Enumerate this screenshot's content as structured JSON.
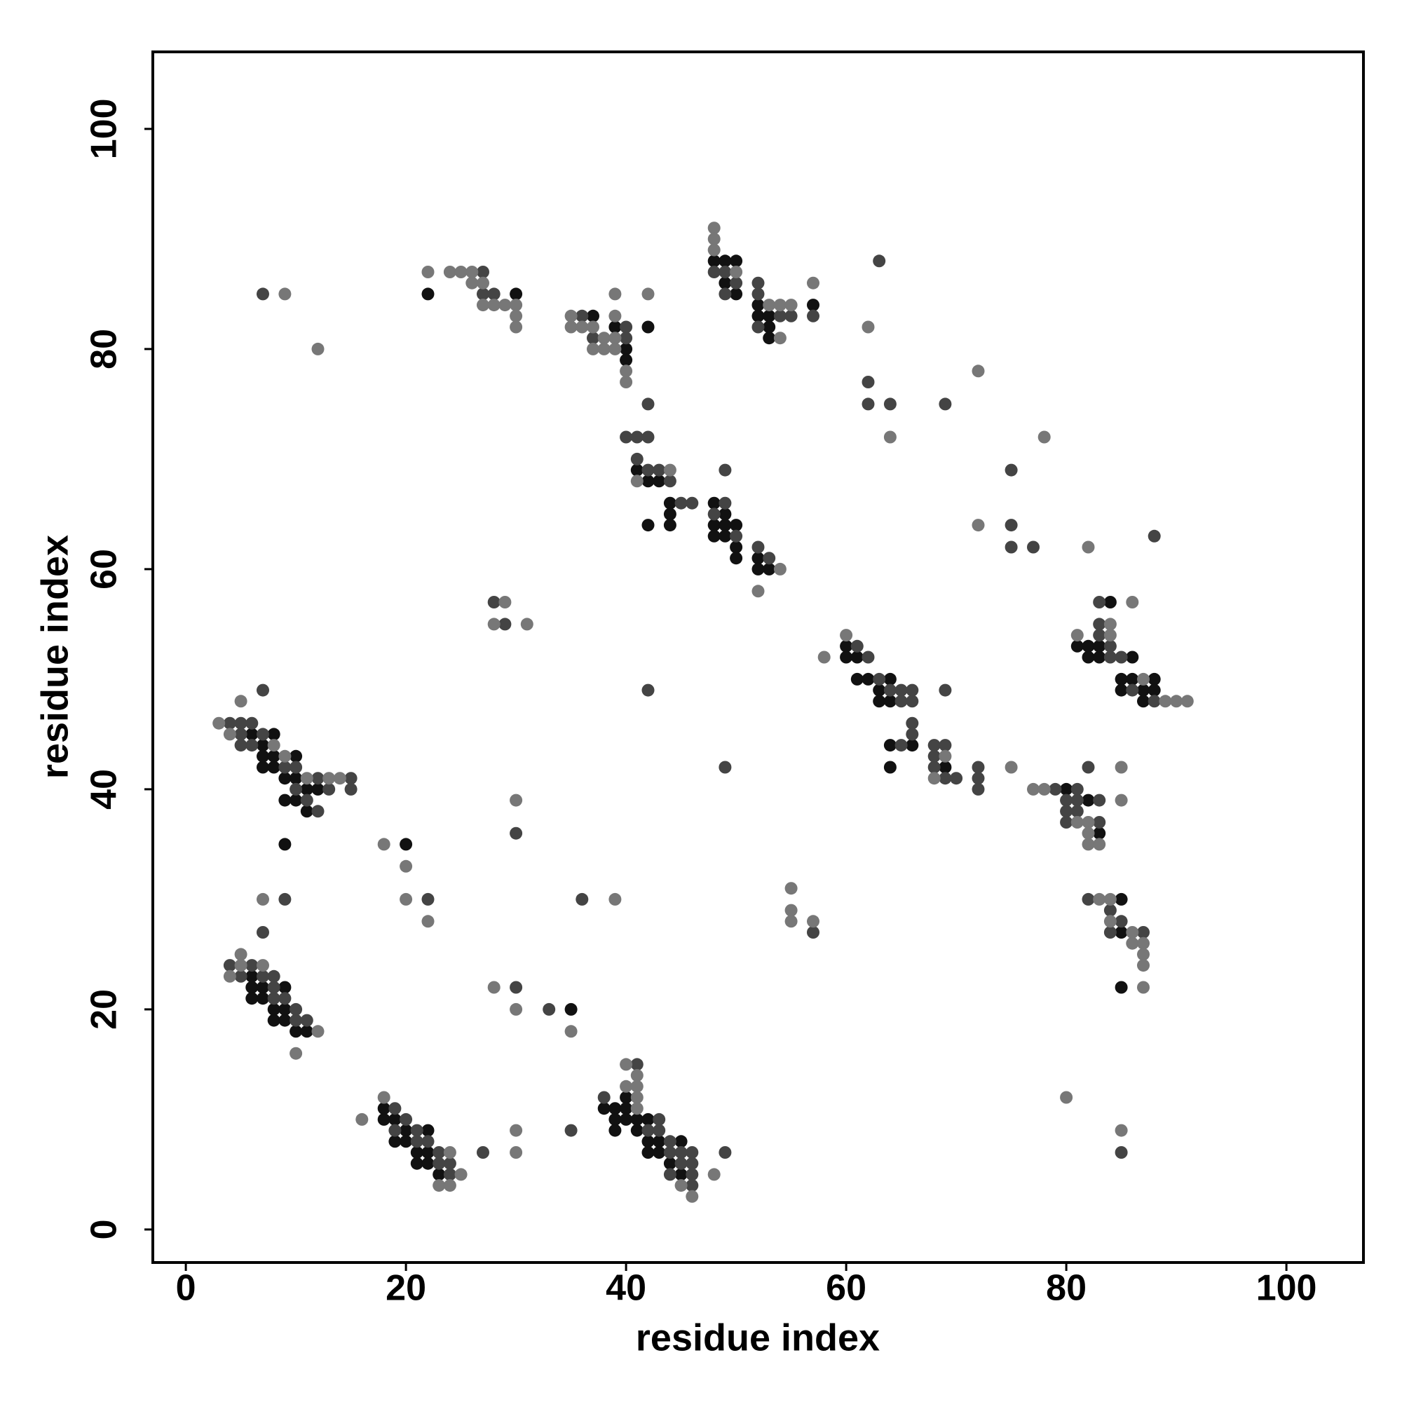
{
  "chart_data": {
    "type": "scatter",
    "x_label": "residue index",
    "y_label": "residue index",
    "xlim": [
      -3,
      107
    ],
    "ylim": [
      -3,
      107
    ],
    "xticks": [
      0,
      20,
      40,
      60,
      80,
      100
    ],
    "yticks": [
      0,
      20,
      40,
      60,
      80,
      100
    ],
    "grid": false,
    "series": [
      {
        "color": "#111111",
        "x": [
          18,
          18,
          19,
          20,
          19,
          20,
          22,
          21,
          22,
          21,
          22,
          23,
          40,
          38,
          39,
          40,
          39,
          40,
          41,
          42,
          39,
          41,
          42,
          43,
          45,
          42,
          43,
          44,
          45,
          6,
          6,
          7,
          9,
          6,
          7,
          8,
          9,
          8,
          9,
          10,
          11,
          35,
          20,
          9,
          6,
          8,
          7,
          7,
          8,
          10,
          7,
          8,
          9,
          10,
          11,
          12,
          9,
          10,
          11,
          22,
          30,
          37,
          40,
          40,
          39,
          42,
          48,
          49,
          50,
          49,
          50,
          52,
          52,
          53,
          53,
          53,
          57,
          41,
          42,
          43,
          44,
          44,
          44,
          42,
          48,
          49,
          48,
          49,
          50,
          48,
          49,
          50,
          50,
          52,
          52,
          53,
          60,
          60,
          61,
          61,
          62,
          64,
          63,
          63,
          64,
          64,
          66,
          64,
          69,
          84,
          81,
          82,
          83,
          82,
          83,
          86,
          85,
          86,
          88,
          85,
          87,
          88,
          87,
          80,
          82,
          83,
          85,
          85,
          85
        ],
        "values": [
          11,
          10,
          10,
          9,
          8,
          8,
          9,
          7,
          7,
          6,
          6,
          5,
          12,
          11,
          11,
          11,
          10,
          10,
          10,
          10,
          9,
          9,
          8,
          8,
          8,
          7,
          7,
          6,
          5,
          23,
          22,
          22,
          22,
          21,
          21,
          20,
          20,
          19,
          19,
          18,
          18,
          20,
          35,
          35,
          45,
          45,
          44,
          43,
          43,
          43,
          42,
          42,
          41,
          41,
          40,
          40,
          39,
          39,
          38,
          85,
          85,
          83,
          80,
          79,
          82,
          82,
          88,
          88,
          88,
          86,
          85,
          84,
          83,
          83,
          82,
          81,
          84,
          69,
          68,
          68,
          66,
          65,
          64,
          64,
          66,
          65,
          64,
          64,
          64,
          63,
          63,
          62,
          61,
          61,
          60,
          60,
          53,
          52,
          52,
          50,
          50,
          50,
          49,
          48,
          48,
          44,
          44,
          42,
          42,
          57,
          53,
          53,
          53,
          52,
          52,
          52,
          50,
          50,
          50,
          49,
          49,
          49,
          48,
          40,
          39,
          36,
          30,
          27,
          22
        ]
      },
      {
        "color": "#444444",
        "x": [
          19,
          20,
          19,
          21,
          21,
          23,
          23,
          24,
          22,
          24,
          27,
          41,
          38,
          43,
          42,
          43,
          44,
          44,
          45,
          46,
          45,
          46,
          44,
          46,
          46,
          49,
          35,
          4,
          6,
          5,
          7,
          8,
          8,
          8,
          9,
          10,
          10,
          11,
          7,
          9,
          30,
          33,
          22,
          36,
          30,
          7,
          4,
          5,
          6,
          5,
          7,
          5,
          6,
          9,
          10,
          12,
          15,
          10,
          13,
          15,
          11,
          12,
          28,
          29,
          7,
          27,
          27,
          28,
          36,
          40,
          37,
          40,
          42,
          48,
          49,
          50,
          49,
          52,
          52,
          54,
          55,
          52,
          57,
          63,
          62,
          62,
          64,
          69,
          40,
          41,
          42,
          41,
          42,
          43,
          44,
          45,
          46,
          49,
          49,
          48,
          50,
          52,
          53,
          75,
          75,
          75,
          77,
          88,
          61,
          62,
          63,
          64,
          65,
          66,
          65,
          66,
          66,
          66,
          65,
          69,
          68,
          69,
          68,
          68,
          69,
          70,
          72,
          72,
          72,
          49,
          42,
          83,
          83,
          83,
          84,
          84,
          85,
          86,
          88,
          79,
          81,
          80,
          81,
          83,
          80,
          81,
          80,
          83,
          82,
          82,
          84,
          85,
          84,
          87,
          85,
          57
        ],
        "values": [
          11,
          10,
          9,
          9,
          8,
          7,
          6,
          5,
          8,
          6,
          7,
          15,
          12,
          10,
          9,
          9,
          8,
          7,
          7,
          7,
          6,
          6,
          5,
          5,
          4,
          7,
          9,
          24,
          24,
          23,
          23,
          23,
          22,
          21,
          21,
          20,
          19,
          19,
          27,
          30,
          22,
          20,
          30,
          30,
          36,
          49,
          46,
          46,
          46,
          45,
          45,
          44,
          44,
          42,
          42,
          41,
          41,
          40,
          40,
          40,
          39,
          38,
          57,
          55,
          85,
          87,
          85,
          85,
          83,
          81,
          81,
          82,
          75,
          87,
          87,
          86,
          85,
          86,
          85,
          83,
          83,
          82,
          83,
          88,
          77,
          75,
          75,
          75,
          72,
          72,
          72,
          70,
          69,
          69,
          68,
          66,
          66,
          69,
          66,
          65,
          63,
          62,
          61,
          69,
          64,
          62,
          62,
          63,
          53,
          52,
          50,
          49,
          49,
          49,
          48,
          48,
          46,
          45,
          44,
          49,
          44,
          44,
          43,
          42,
          41,
          41,
          42,
          41,
          40,
          42,
          49,
          57,
          55,
          54,
          53,
          52,
          52,
          49,
          48,
          40,
          40,
          39,
          39,
          39,
          38,
          38,
          37,
          37,
          42,
          30,
          29,
          28,
          27,
          27,
          7,
          27
        ]
      },
      {
        "color": "#777777",
        "x": [
          16,
          18,
          24,
          23,
          24,
          25,
          30,
          30,
          40,
          41,
          40,
          41,
          41,
          41,
          45,
          46,
          48,
          5,
          5,
          7,
          4,
          12,
          10,
          7,
          28,
          30,
          35,
          18,
          20,
          20,
          22,
          39,
          30,
          5,
          3,
          4,
          8,
          9,
          11,
          13,
          14,
          29,
          28,
          31,
          9,
          12,
          22,
          24,
          25,
          26,
          26,
          27,
          27,
          28,
          29,
          30,
          30,
          30,
          35,
          35,
          36,
          37,
          38,
          39,
          37,
          38,
          39,
          39,
          40,
          40,
          39,
          42,
          48,
          48,
          48,
          50,
          53,
          54,
          55,
          54,
          57,
          62,
          64,
          72,
          41,
          44,
          54,
          52,
          72,
          78,
          82,
          58,
          60,
          69,
          68,
          75,
          86,
          84,
          81,
          84,
          87,
          89,
          90,
          91,
          77,
          78,
          81,
          82,
          82,
          82,
          83,
          85,
          85,
          83,
          84,
          84,
          86,
          86,
          87,
          87,
          87,
          87,
          80,
          85,
          55,
          55,
          55,
          57
        ],
        "values": [
          10,
          12,
          7,
          4,
          4,
          5,
          9,
          7,
          15,
          14,
          13,
          13,
          12,
          11,
          4,
          3,
          5,
          25,
          24,
          24,
          23,
          18,
          16,
          30,
          22,
          20,
          18,
          35,
          33,
          30,
          28,
          30,
          39,
          48,
          46,
          45,
          44,
          43,
          41,
          41,
          41,
          57,
          55,
          55,
          85,
          80,
          87,
          87,
          87,
          87,
          86,
          86,
          84,
          84,
          84,
          84,
          83,
          82,
          83,
          82,
          82,
          82,
          81,
          81,
          80,
          80,
          80,
          83,
          78,
          77,
          85,
          85,
          91,
          90,
          89,
          87,
          84,
          84,
          84,
          81,
          86,
          82,
          72,
          78,
          68,
          69,
          60,
          58,
          64,
          72,
          62,
          52,
          54,
          43,
          41,
          42,
          57,
          55,
          54,
          54,
          50,
          48,
          48,
          48,
          40,
          40,
          37,
          37,
          36,
          35,
          35,
          42,
          39,
          30,
          30,
          28,
          27,
          26,
          26,
          25,
          24,
          22,
          12,
          9,
          31,
          29,
          28,
          28
        ]
      }
    ]
  }
}
